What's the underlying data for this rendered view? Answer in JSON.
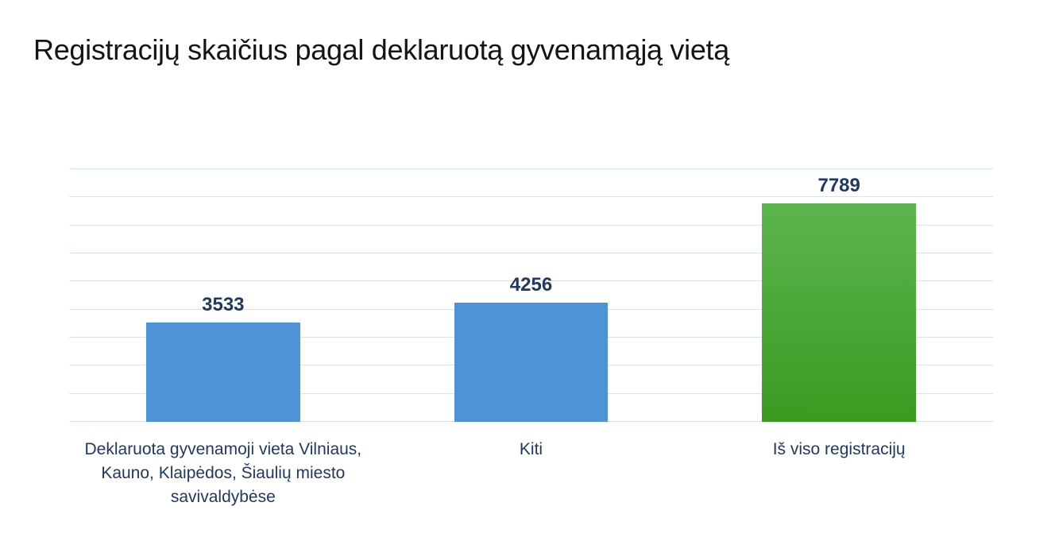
{
  "title": "Registracijų skaičius pagal deklaruotą gyvenamąją vietą",
  "chart_data": {
    "type": "bar",
    "title": "Registracijų skaičius pagal deklaruotą gyvenamąją vietą",
    "categories": [
      "Deklaruota gyvenamoji vieta Vilniaus, Kauno, Klaipėdos, Šiaulių miesto savivaldybėse",
      "Kiti",
      "Iš viso registracijų"
    ],
    "values": [
      3533,
      4256,
      7789
    ],
    "data_labels": [
      "3533",
      "4256",
      "7789"
    ],
    "bar_colors": [
      "blue",
      "blue",
      "green"
    ],
    "xlabel": "",
    "ylabel": "",
    "ylim": [
      0,
      9000
    ],
    "gridline_step": 1000,
    "grid": "horizontal-only",
    "axis_tick_labels": "none",
    "legend": "none",
    "colors": {
      "bar_blue": "#4e92d8",
      "bar_green_top": "#5db44e",
      "bar_green_bottom": "#3a9a21",
      "text_labels": "#1f3864",
      "gridline": "#d5e4f1",
      "title_text": "#141414",
      "background": "#ffffff"
    }
  }
}
